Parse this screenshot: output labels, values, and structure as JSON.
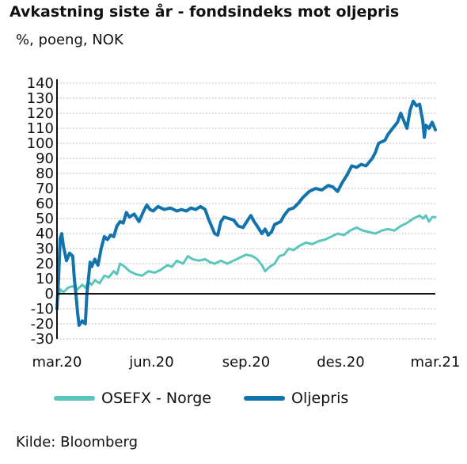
{
  "title": "Avkastning siste år - fondsindeks mot oljepris",
  "subtitle": "%, poeng, NOK",
  "source": "Kilde: Bloomberg",
  "colors": {
    "osefx": "#5cc6bd",
    "oljepris": "#1273ad",
    "grid": "#bdbdbd",
    "axis": "#111111"
  },
  "chart_data": {
    "type": "line",
    "title": "Avkastning siste år - fondsindeks mot oljepris",
    "ylabel": "%, poeng, NOK",
    "ylim": [
      -30,
      140
    ],
    "yticks": [
      140,
      130,
      120,
      110,
      100,
      90,
      80,
      70,
      60,
      50,
      40,
      30,
      20,
      10,
      0,
      -10,
      -20,
      -30
    ],
    "xlim": [
      0,
      12
    ],
    "xticks": [
      {
        "label": "mar.20",
        "x": 0
      },
      {
        "label": "jun.20",
        "x": 3
      },
      {
        "label": "sep.20",
        "x": 6
      },
      {
        "label": "des.20",
        "x": 9
      },
      {
        "label": "mar.21",
        "x": 12
      }
    ],
    "grid": true,
    "legend": "bottom",
    "series": [
      {
        "name": "OSEFX - Norge",
        "color": "#5cc6bd",
        "points": [
          [
            0.0,
            -5
          ],
          [
            0.1,
            3
          ],
          [
            0.2,
            1
          ],
          [
            0.35,
            4
          ],
          [
            0.5,
            5
          ],
          [
            0.65,
            3
          ],
          [
            0.8,
            6
          ],
          [
            0.9,
            4
          ],
          [
            1.0,
            8
          ],
          [
            1.1,
            6
          ],
          [
            1.2,
            9
          ],
          [
            1.35,
            7
          ],
          [
            1.5,
            12
          ],
          [
            1.65,
            11
          ],
          [
            1.8,
            15
          ],
          [
            1.9,
            13
          ],
          [
            2.0,
            20
          ],
          [
            2.15,
            18
          ],
          [
            2.3,
            15
          ],
          [
            2.5,
            13
          ],
          [
            2.7,
            12
          ],
          [
            2.9,
            15
          ],
          [
            3.1,
            14
          ],
          [
            3.3,
            16
          ],
          [
            3.5,
            19
          ],
          [
            3.65,
            18
          ],
          [
            3.8,
            22
          ],
          [
            4.0,
            20
          ],
          [
            4.15,
            25
          ],
          [
            4.3,
            23
          ],
          [
            4.5,
            22
          ],
          [
            4.7,
            23
          ],
          [
            4.85,
            21
          ],
          [
            5.0,
            20
          ],
          [
            5.2,
            22
          ],
          [
            5.4,
            20
          ],
          [
            5.6,
            22
          ],
          [
            5.8,
            24
          ],
          [
            6.0,
            26
          ],
          [
            6.2,
            25
          ],
          [
            6.35,
            23
          ],
          [
            6.5,
            19
          ],
          [
            6.6,
            15
          ],
          [
            6.75,
            18
          ],
          [
            6.9,
            20
          ],
          [
            7.05,
            25
          ],
          [
            7.2,
            26
          ],
          [
            7.35,
            30
          ],
          [
            7.5,
            29
          ],
          [
            7.7,
            32
          ],
          [
            7.9,
            34
          ],
          [
            8.1,
            33
          ],
          [
            8.3,
            35
          ],
          [
            8.5,
            36
          ],
          [
            8.7,
            38
          ],
          [
            8.9,
            40
          ],
          [
            9.1,
            39
          ],
          [
            9.3,
            42
          ],
          [
            9.5,
            44
          ],
          [
            9.7,
            42
          ],
          [
            9.9,
            41
          ],
          [
            10.1,
            40
          ],
          [
            10.3,
            42
          ],
          [
            10.5,
            43
          ],
          [
            10.7,
            42
          ],
          [
            10.9,
            45
          ],
          [
            11.1,
            47
          ],
          [
            11.3,
            50
          ],
          [
            11.5,
            52
          ],
          [
            11.6,
            50
          ],
          [
            11.7,
            52
          ],
          [
            11.8,
            48
          ],
          [
            11.9,
            51
          ],
          [
            12.0,
            51
          ]
        ]
      },
      {
        "name": "Oljepris",
        "color": "#1273ad",
        "points": [
          [
            0.0,
            -10
          ],
          [
            0.05,
            10
          ],
          [
            0.1,
            37
          ],
          [
            0.15,
            40
          ],
          [
            0.2,
            32
          ],
          [
            0.3,
            22
          ],
          [
            0.4,
            27
          ],
          [
            0.5,
            25
          ],
          [
            0.55,
            10
          ],
          [
            0.6,
            0
          ],
          [
            0.65,
            -12
          ],
          [
            0.7,
            -21
          ],
          [
            0.8,
            -18
          ],
          [
            0.9,
            -20
          ],
          [
            0.95,
            0
          ],
          [
            1.0,
            10
          ],
          [
            1.05,
            21
          ],
          [
            1.1,
            18
          ],
          [
            1.2,
            23
          ],
          [
            1.3,
            19
          ],
          [
            1.4,
            30
          ],
          [
            1.5,
            38
          ],
          [
            1.6,
            36
          ],
          [
            1.7,
            39
          ],
          [
            1.8,
            38
          ],
          [
            1.9,
            45
          ],
          [
            2.0,
            48
          ],
          [
            2.1,
            47
          ],
          [
            2.2,
            54
          ],
          [
            2.3,
            51
          ],
          [
            2.45,
            53
          ],
          [
            2.6,
            48
          ],
          [
            2.75,
            55
          ],
          [
            2.85,
            59
          ],
          [
            2.95,
            56
          ],
          [
            3.05,
            55
          ],
          [
            3.2,
            58
          ],
          [
            3.4,
            56
          ],
          [
            3.6,
            57
          ],
          [
            3.8,
            55
          ],
          [
            3.95,
            56
          ],
          [
            4.1,
            55
          ],
          [
            4.25,
            57
          ],
          [
            4.4,
            56
          ],
          [
            4.55,
            58
          ],
          [
            4.7,
            56
          ],
          [
            4.8,
            50
          ],
          [
            4.9,
            45
          ],
          [
            5.0,
            40
          ],
          [
            5.1,
            39
          ],
          [
            5.2,
            48
          ],
          [
            5.3,
            51
          ],
          [
            5.45,
            50
          ],
          [
            5.6,
            49
          ],
          [
            5.75,
            45
          ],
          [
            5.9,
            44
          ],
          [
            6.05,
            49
          ],
          [
            6.15,
            52
          ],
          [
            6.25,
            48
          ],
          [
            6.35,
            45
          ],
          [
            6.5,
            40
          ],
          [
            6.6,
            43
          ],
          [
            6.7,
            39
          ],
          [
            6.8,
            41
          ],
          [
            6.9,
            46
          ],
          [
            7.0,
            47
          ],
          [
            7.1,
            48
          ],
          [
            7.2,
            52
          ],
          [
            7.35,
            56
          ],
          [
            7.5,
            57
          ],
          [
            7.65,
            60
          ],
          [
            7.8,
            64
          ],
          [
            7.9,
            66
          ],
          [
            8.0,
            68
          ],
          [
            8.2,
            70
          ],
          [
            8.4,
            69
          ],
          [
            8.6,
            72
          ],
          [
            8.75,
            71
          ],
          [
            8.9,
            68
          ],
          [
            9.05,
            74
          ],
          [
            9.2,
            79
          ],
          [
            9.35,
            85
          ],
          [
            9.5,
            84
          ],
          [
            9.65,
            86
          ],
          [
            9.8,
            85
          ],
          [
            10.0,
            90
          ],
          [
            10.1,
            94
          ],
          [
            10.2,
            100
          ],
          [
            10.4,
            102
          ],
          [
            10.5,
            106
          ],
          [
            10.65,
            110
          ],
          [
            10.8,
            114
          ],
          [
            10.9,
            120
          ],
          [
            11.0,
            115
          ],
          [
            11.1,
            110
          ],
          [
            11.2,
            122
          ],
          [
            11.3,
            128
          ],
          [
            11.4,
            125
          ],
          [
            11.5,
            126
          ],
          [
            11.6,
            115
          ],
          [
            11.65,
            104
          ],
          [
            11.7,
            112
          ],
          [
            11.8,
            110
          ],
          [
            11.9,
            114
          ],
          [
            12.0,
            109
          ]
        ]
      }
    ]
  },
  "legend_items": [
    {
      "label": "OSEFX - Norge",
      "color": "#5cc6bd"
    },
    {
      "label": "Oljepris",
      "color": "#1273ad"
    }
  ]
}
